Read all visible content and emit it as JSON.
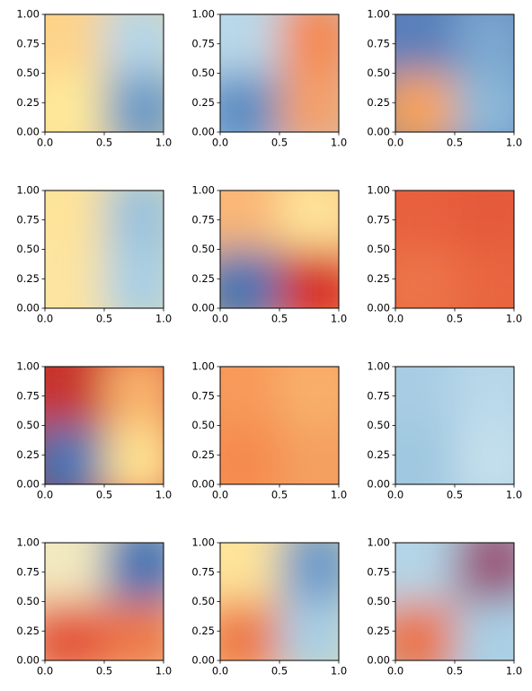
{
  "chart_data": [
    {
      "type": "heatmap",
      "colormap": "RdYlBu",
      "colors": [
        "#fdd38a",
        "#b5d6e8",
        "#fee99a",
        "#6e9cc8"
      ],
      "xlim": [
        0,
        1
      ],
      "ylim": [
        0,
        1
      ],
      "xticks": [
        {
          "value": 0,
          "label": "0.0"
        },
        {
          "value": 0.5,
          "label": "0.5"
        },
        {
          "value": 1,
          "label": "1.0"
        }
      ],
      "yticks": [
        {
          "value": 0,
          "label": "0.00"
        },
        {
          "value": 0.25,
          "label": "0.25"
        },
        {
          "value": 0.5,
          "label": "0.50"
        },
        {
          "value": 0.75,
          "label": "0.75"
        },
        {
          "value": 1,
          "label": "1.00"
        }
      ]
    },
    {
      "type": "heatmap",
      "colormap": "RdYlBu",
      "colors": [
        "#b9d8e9",
        "#f58a55",
        "#5d8ec3",
        "#f4a06a"
      ],
      "xlim": [
        0,
        1
      ],
      "ylim": [
        0,
        1
      ],
      "xticks": [
        {
          "value": 0,
          "label": "0.0"
        },
        {
          "value": 0.5,
          "label": "0.5"
        },
        {
          "value": 1,
          "label": "1.0"
        }
      ],
      "yticks": [
        {
          "value": 0,
          "label": "0.00"
        },
        {
          "value": 0.25,
          "label": "0.25"
        },
        {
          "value": 0.5,
          "label": "0.50"
        },
        {
          "value": 0.75,
          "label": "0.75"
        },
        {
          "value": 1,
          "label": "1.00"
        }
      ]
    },
    {
      "type": "heatmap",
      "colormap": "RdYlBu",
      "colors": [
        "#5a7fba",
        "#7aa6cf",
        "#f6a25c",
        "#8ab8d8"
      ],
      "xlim": [
        0,
        1
      ],
      "ylim": [
        0,
        1
      ],
      "xticks": [
        {
          "value": 0,
          "label": "0.0"
        },
        {
          "value": 0.5,
          "label": "0.5"
        },
        {
          "value": 1,
          "label": "1.0"
        }
      ],
      "yticks": [
        {
          "value": 0,
          "label": "0.00"
        },
        {
          "value": 0.25,
          "label": "0.25"
        },
        {
          "value": 0.5,
          "label": "0.50"
        },
        {
          "value": 0.75,
          "label": "0.75"
        },
        {
          "value": 1,
          "label": "1.00"
        }
      ]
    },
    {
      "type": "heatmap",
      "colormap": "RdYlBu",
      "colors": [
        "#fee39a",
        "#9cc3dd",
        "#fde4a0",
        "#a9cfe4"
      ],
      "xlim": [
        0,
        1
      ],
      "ylim": [
        0,
        1
      ],
      "xticks": [
        {
          "value": 0,
          "label": "0.0"
        },
        {
          "value": 0.5,
          "label": "0.5"
        },
        {
          "value": 1,
          "label": "1.0"
        }
      ],
      "yticks": [
        {
          "value": 0,
          "label": "0.00"
        },
        {
          "value": 0.25,
          "label": "0.25"
        },
        {
          "value": 0.5,
          "label": "0.50"
        },
        {
          "value": 0.75,
          "label": "0.75"
        },
        {
          "value": 1,
          "label": "1.00"
        }
      ]
    },
    {
      "type": "heatmap",
      "colormap": "RdYlBu",
      "colors": [
        "#f9b777",
        "#fee39a",
        "#4a74b4",
        "#d73027"
      ],
      "xlim": [
        0,
        1
      ],
      "ylim": [
        0,
        1
      ],
      "xticks": [
        {
          "value": 0,
          "label": "0.0"
        },
        {
          "value": 0.5,
          "label": "0.5"
        },
        {
          "value": 1,
          "label": "1.0"
        }
      ],
      "yticks": [
        {
          "value": 0,
          "label": "0.00"
        },
        {
          "value": 0.25,
          "label": "0.25"
        },
        {
          "value": 0.5,
          "label": "0.50"
        },
        {
          "value": 0.75,
          "label": "0.75"
        },
        {
          "value": 1,
          "label": "1.00"
        }
      ]
    },
    {
      "type": "heatmap",
      "colormap": "RdYlBu",
      "colors": [
        "#e8603c",
        "#e45a3a",
        "#ec7448",
        "#e9663f"
      ],
      "xlim": [
        0,
        1
      ],
      "ylim": [
        0,
        1
      ],
      "xticks": [
        {
          "value": 0,
          "label": "0.0"
        },
        {
          "value": 0.5,
          "label": "0.5"
        },
        {
          "value": 1,
          "label": "1.0"
        }
      ],
      "yticks": [
        {
          "value": 0,
          "label": "0.00"
        },
        {
          "value": 0.25,
          "label": "0.25"
        },
        {
          "value": 0.5,
          "label": "0.50"
        },
        {
          "value": 0.75,
          "label": "0.75"
        },
        {
          "value": 1,
          "label": "1.00"
        }
      ]
    },
    {
      "type": "heatmap",
      "colormap": "RdYlBu",
      "colors": [
        "#c8352f",
        "#f8b06a",
        "#4a74b4",
        "#fedf8f"
      ],
      "xlim": [
        0,
        1
      ],
      "ylim": [
        0,
        1
      ],
      "xticks": [
        {
          "value": 0,
          "label": "0.0"
        },
        {
          "value": 0.5,
          "label": "0.5"
        },
        {
          "value": 1,
          "label": "1.0"
        }
      ],
      "yticks": [
        {
          "value": 0,
          "label": "0.00"
        },
        {
          "value": 0.25,
          "label": "0.25"
        },
        {
          "value": 0.5,
          "label": "0.50"
        },
        {
          "value": 0.75,
          "label": "0.75"
        },
        {
          "value": 1,
          "label": "1.00"
        }
      ]
    },
    {
      "type": "heatmap",
      "colormap": "RdYlBu",
      "colors": [
        "#f79a5a",
        "#f8b06a",
        "#f58a4e",
        "#f4a060"
      ],
      "xlim": [
        0,
        1
      ],
      "ylim": [
        0,
        1
      ],
      "xticks": [
        {
          "value": 0,
          "label": "0.0"
        },
        {
          "value": 0.5,
          "label": "0.5"
        },
        {
          "value": 1,
          "label": "1.0"
        }
      ],
      "yticks": [
        {
          "value": 0,
          "label": "0.00"
        },
        {
          "value": 0.25,
          "label": "0.25"
        },
        {
          "value": 0.5,
          "label": "0.50"
        },
        {
          "value": 0.75,
          "label": "0.75"
        },
        {
          "value": 1,
          "label": "1.00"
        }
      ]
    },
    {
      "type": "heatmap",
      "colormap": "RdYlBu",
      "colors": [
        "#a8cde3",
        "#bad9ea",
        "#9fc7e0",
        "#c4dfec"
      ],
      "xlim": [
        0,
        1
      ],
      "ylim": [
        0,
        1
      ],
      "xticks": [
        {
          "value": 0,
          "label": "0.0"
        },
        {
          "value": 0.5,
          "label": "0.5"
        },
        {
          "value": 1,
          "label": "1.0"
        }
      ],
      "yticks": [
        {
          "value": 0,
          "label": "0.00"
        },
        {
          "value": 0.25,
          "label": "0.25"
        },
        {
          "value": 0.5,
          "label": "0.50"
        },
        {
          "value": 0.75,
          "label": "0.75"
        },
        {
          "value": 1,
          "label": "1.00"
        }
      ]
    },
    {
      "type": "heatmap",
      "colormap": "RdYlBu",
      "colors": [
        "#f2e9c0",
        "#4a74b4",
        "#e4573a",
        "#ee7a4a"
      ],
      "xlim": [
        0,
        1
      ],
      "ylim": [
        0,
        1
      ],
      "xticks": [
        {
          "value": 0,
          "label": "0.0"
        },
        {
          "value": 0.5,
          "label": "0.5"
        },
        {
          "value": 1,
          "label": "1.0"
        }
      ],
      "yticks": [
        {
          "value": 0,
          "label": "0.00"
        },
        {
          "value": 0.25,
          "label": "0.25"
        },
        {
          "value": 0.5,
          "label": "0.50"
        },
        {
          "value": 0.75,
          "label": "0.75"
        },
        {
          "value": 1,
          "label": "1.00"
        }
      ]
    },
    {
      "type": "heatmap",
      "colormap": "RdYlBu",
      "colors": [
        "#fee39a",
        "#6f9ccb",
        "#ee7a4a",
        "#a9cfe4"
      ],
      "xlim": [
        0,
        1
      ],
      "ylim": [
        0,
        1
      ],
      "xticks": [
        {
          "value": 0,
          "label": "0.0"
        },
        {
          "value": 0.5,
          "label": "0.5"
        },
        {
          "value": 1,
          "label": "1.0"
        }
      ],
      "yticks": [
        {
          "value": 0,
          "label": "0.00"
        },
        {
          "value": 0.25,
          "label": "0.25"
        },
        {
          "value": 0.5,
          "label": "0.50"
        },
        {
          "value": 0.75,
          "label": "0.75"
        },
        {
          "value": 1,
          "label": "1.00"
        }
      ]
    },
    {
      "type": "heatmap",
      "colormap": "RdYlBu",
      "colors": [
        "#b3d5e7",
        "#9a5a7c",
        "#ec7448",
        "#a9cfe4"
      ],
      "xlim": [
        0,
        1
      ],
      "ylim": [
        0,
        1
      ],
      "xticks": [
        {
          "value": 0,
          "label": "0.0"
        },
        {
          "value": 0.5,
          "label": "0.5"
        },
        {
          "value": 1,
          "label": "1.0"
        }
      ],
      "yticks": [
        {
          "value": 0,
          "label": "0.00"
        },
        {
          "value": 0.25,
          "label": "0.25"
        },
        {
          "value": 0.5,
          "label": "0.50"
        },
        {
          "value": 0.75,
          "label": "0.75"
        },
        {
          "value": 1,
          "label": "1.00"
        }
      ]
    }
  ]
}
